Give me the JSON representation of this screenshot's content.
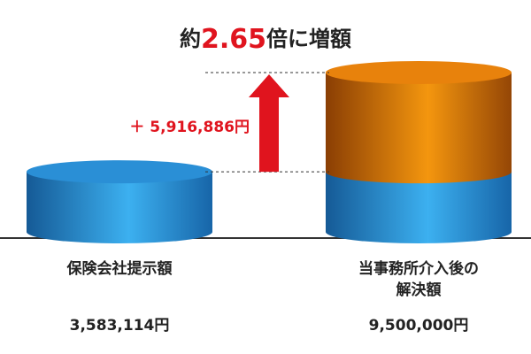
{
  "chart_data": {
    "type": "cylinder-stack",
    "title": [
      "約",
      "2.65",
      "倍に増額"
    ],
    "categories": [
      "保険会社提示額",
      "当事務所介入後の解決額"
    ],
    "series": [
      {
        "color": "#2a8fd6",
        "values": [
          3583114,
          3583114
        ]
      },
      {
        "color": "#e8820c",
        "values": [
          null,
          5916886
        ],
        "value_labels": [
          null,
          "＋ 5,916,886円"
        ]
      }
    ],
    "totals": [
      3583114,
      9500000
    ],
    "total_labels": [
      "3,583,114円",
      "9,500,000円"
    ]
  }
}
